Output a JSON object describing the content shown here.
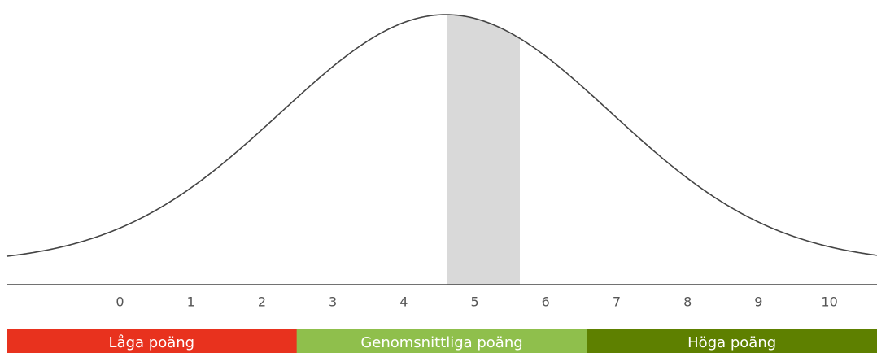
{
  "chart_data": {
    "type": "bell",
    "xlim": [
      -1.6,
      10.67
    ],
    "xticks": [
      0,
      1,
      2,
      3,
      4,
      5,
      6,
      7,
      8,
      9,
      10
    ],
    "bands": [
      {
        "label": "Låga poäng",
        "color": "#e8321e"
      },
      {
        "label": "Genomsnittliga poäng",
        "color": "#8fbf4c"
      },
      {
        "label": "Höga poäng",
        "color": "#5e8000"
      }
    ]
  }
}
